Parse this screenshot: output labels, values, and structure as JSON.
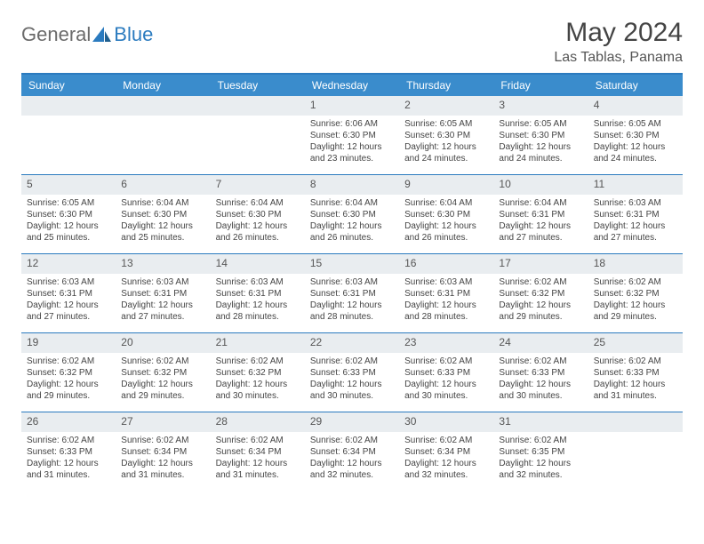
{
  "brand": {
    "text1": "General",
    "text2": "Blue"
  },
  "title": "May 2024",
  "location": "Las Tablas, Panama",
  "colors": {
    "header_bg": "#3a8ccc",
    "border": "#2b7bbf",
    "daynum_bg": "#e9edf0",
    "text": "#444444",
    "logo_gray": "#6b6b6b",
    "logo_blue": "#2b7bbf"
  },
  "typography": {
    "title_fontsize": 30,
    "location_fontsize": 16,
    "dow_fontsize": 12,
    "daynum_fontsize": 12,
    "info_fontsize": 10
  },
  "daysOfWeek": [
    "Sunday",
    "Monday",
    "Tuesday",
    "Wednesday",
    "Thursday",
    "Friday",
    "Saturday"
  ],
  "weeks": [
    [
      {
        "n": "",
        "sr": "",
        "ss": "",
        "dl": ""
      },
      {
        "n": "",
        "sr": "",
        "ss": "",
        "dl": ""
      },
      {
        "n": "",
        "sr": "",
        "ss": "",
        "dl": ""
      },
      {
        "n": "1",
        "sr": "Sunrise: 6:06 AM",
        "ss": "Sunset: 6:30 PM",
        "dl": "Daylight: 12 hours and 23 minutes."
      },
      {
        "n": "2",
        "sr": "Sunrise: 6:05 AM",
        "ss": "Sunset: 6:30 PM",
        "dl": "Daylight: 12 hours and 24 minutes."
      },
      {
        "n": "3",
        "sr": "Sunrise: 6:05 AM",
        "ss": "Sunset: 6:30 PM",
        "dl": "Daylight: 12 hours and 24 minutes."
      },
      {
        "n": "4",
        "sr": "Sunrise: 6:05 AM",
        "ss": "Sunset: 6:30 PM",
        "dl": "Daylight: 12 hours and 24 minutes."
      }
    ],
    [
      {
        "n": "5",
        "sr": "Sunrise: 6:05 AM",
        "ss": "Sunset: 6:30 PM",
        "dl": "Daylight: 12 hours and 25 minutes."
      },
      {
        "n": "6",
        "sr": "Sunrise: 6:04 AM",
        "ss": "Sunset: 6:30 PM",
        "dl": "Daylight: 12 hours and 25 minutes."
      },
      {
        "n": "7",
        "sr": "Sunrise: 6:04 AM",
        "ss": "Sunset: 6:30 PM",
        "dl": "Daylight: 12 hours and 26 minutes."
      },
      {
        "n": "8",
        "sr": "Sunrise: 6:04 AM",
        "ss": "Sunset: 6:30 PM",
        "dl": "Daylight: 12 hours and 26 minutes."
      },
      {
        "n": "9",
        "sr": "Sunrise: 6:04 AM",
        "ss": "Sunset: 6:30 PM",
        "dl": "Daylight: 12 hours and 26 minutes."
      },
      {
        "n": "10",
        "sr": "Sunrise: 6:04 AM",
        "ss": "Sunset: 6:31 PM",
        "dl": "Daylight: 12 hours and 27 minutes."
      },
      {
        "n": "11",
        "sr": "Sunrise: 6:03 AM",
        "ss": "Sunset: 6:31 PM",
        "dl": "Daylight: 12 hours and 27 minutes."
      }
    ],
    [
      {
        "n": "12",
        "sr": "Sunrise: 6:03 AM",
        "ss": "Sunset: 6:31 PM",
        "dl": "Daylight: 12 hours and 27 minutes."
      },
      {
        "n": "13",
        "sr": "Sunrise: 6:03 AM",
        "ss": "Sunset: 6:31 PM",
        "dl": "Daylight: 12 hours and 27 minutes."
      },
      {
        "n": "14",
        "sr": "Sunrise: 6:03 AM",
        "ss": "Sunset: 6:31 PM",
        "dl": "Daylight: 12 hours and 28 minutes."
      },
      {
        "n": "15",
        "sr": "Sunrise: 6:03 AM",
        "ss": "Sunset: 6:31 PM",
        "dl": "Daylight: 12 hours and 28 minutes."
      },
      {
        "n": "16",
        "sr": "Sunrise: 6:03 AM",
        "ss": "Sunset: 6:31 PM",
        "dl": "Daylight: 12 hours and 28 minutes."
      },
      {
        "n": "17",
        "sr": "Sunrise: 6:02 AM",
        "ss": "Sunset: 6:32 PM",
        "dl": "Daylight: 12 hours and 29 minutes."
      },
      {
        "n": "18",
        "sr": "Sunrise: 6:02 AM",
        "ss": "Sunset: 6:32 PM",
        "dl": "Daylight: 12 hours and 29 minutes."
      }
    ],
    [
      {
        "n": "19",
        "sr": "Sunrise: 6:02 AM",
        "ss": "Sunset: 6:32 PM",
        "dl": "Daylight: 12 hours and 29 minutes."
      },
      {
        "n": "20",
        "sr": "Sunrise: 6:02 AM",
        "ss": "Sunset: 6:32 PM",
        "dl": "Daylight: 12 hours and 29 minutes."
      },
      {
        "n": "21",
        "sr": "Sunrise: 6:02 AM",
        "ss": "Sunset: 6:32 PM",
        "dl": "Daylight: 12 hours and 30 minutes."
      },
      {
        "n": "22",
        "sr": "Sunrise: 6:02 AM",
        "ss": "Sunset: 6:33 PM",
        "dl": "Daylight: 12 hours and 30 minutes."
      },
      {
        "n": "23",
        "sr": "Sunrise: 6:02 AM",
        "ss": "Sunset: 6:33 PM",
        "dl": "Daylight: 12 hours and 30 minutes."
      },
      {
        "n": "24",
        "sr": "Sunrise: 6:02 AM",
        "ss": "Sunset: 6:33 PM",
        "dl": "Daylight: 12 hours and 30 minutes."
      },
      {
        "n": "25",
        "sr": "Sunrise: 6:02 AM",
        "ss": "Sunset: 6:33 PM",
        "dl": "Daylight: 12 hours and 31 minutes."
      }
    ],
    [
      {
        "n": "26",
        "sr": "Sunrise: 6:02 AM",
        "ss": "Sunset: 6:33 PM",
        "dl": "Daylight: 12 hours and 31 minutes."
      },
      {
        "n": "27",
        "sr": "Sunrise: 6:02 AM",
        "ss": "Sunset: 6:34 PM",
        "dl": "Daylight: 12 hours and 31 minutes."
      },
      {
        "n": "28",
        "sr": "Sunrise: 6:02 AM",
        "ss": "Sunset: 6:34 PM",
        "dl": "Daylight: 12 hours and 31 minutes."
      },
      {
        "n": "29",
        "sr": "Sunrise: 6:02 AM",
        "ss": "Sunset: 6:34 PM",
        "dl": "Daylight: 12 hours and 32 minutes."
      },
      {
        "n": "30",
        "sr": "Sunrise: 6:02 AM",
        "ss": "Sunset: 6:34 PM",
        "dl": "Daylight: 12 hours and 32 minutes."
      },
      {
        "n": "31",
        "sr": "Sunrise: 6:02 AM",
        "ss": "Sunset: 6:35 PM",
        "dl": "Daylight: 12 hours and 32 minutes."
      },
      {
        "n": "",
        "sr": "",
        "ss": "",
        "dl": ""
      }
    ]
  ]
}
